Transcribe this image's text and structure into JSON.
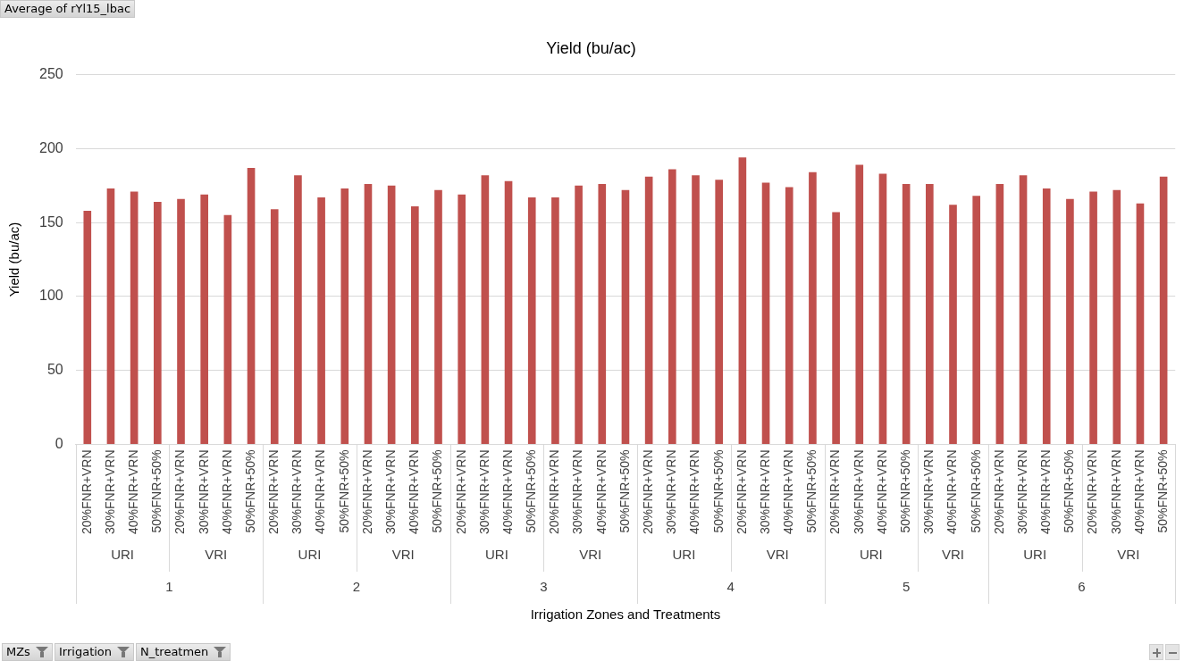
{
  "chart_data": {
    "type": "bar",
    "title": "Yield (bu/ac)",
    "ylabel": "Yield (bu/ac)",
    "categories": [
      "20%FNR+VRN",
      "30%FNR+VRN",
      "40%FNR+VRN",
      "50%FNR+50%",
      "20%FNR+VRN",
      "30%FNR+VRN",
      "40%FNR+VRN",
      "50%FNR+50%",
      "20%FNR+VRN",
      "30%FNR+VRN",
      "40%FNR+VRN",
      "50%FNR+50%",
      "20%FNR+VRN",
      "30%FNR+VRN",
      "40%FNR+VRN",
      "50%FNR+50%",
      "20%FNR+VRN",
      "30%FNR+VRN",
      "40%FNR+VRN",
      "50%FNR+50%",
      "20%FNR+VRN",
      "30%FNR+VRN",
      "40%FNR+VRN",
      "50%FNR+50%",
      "20%FNR+VRN",
      "30%FNR+VRN",
      "40%FNR+VRN",
      "50%FNR+50%",
      "20%FNR+VRN",
      "30%FNR+VRN",
      "40%FNR+VRN",
      "50%FNR+50%",
      "20%FNR+VRN",
      "30%FNR+VRN",
      "40%FNR+VRN",
      "50%FNR+50%",
      "30%FNR+VRN",
      "40%FNR+VRN",
      "50%FNR+50%",
      "20%FNR+VRN",
      "30%FNR+VRN",
      "40%FNR+VRN",
      "50%FNR+50%",
      "20%FNR+VRN",
      "30%FNR+VRN",
      "40%FNR+VRN",
      "50%FNR+50%"
    ],
    "values": [
      158,
      173,
      171,
      164,
      166,
      169,
      155,
      187,
      159,
      182,
      167,
      173,
      176,
      175,
      161,
      172,
      169,
      182,
      178,
      167,
      167,
      175,
      176,
      172,
      181,
      186,
      182,
      179,
      194,
      177,
      174,
      184,
      157,
      189,
      183,
      176,
      176,
      162,
      168,
      176,
      182,
      173,
      166,
      171,
      172,
      163,
      181
    ],
    "color": "#c0504d",
    "ylim": [
      0,
      250
    ],
    "yticks": [
      0,
      50,
      100,
      150,
      200,
      250
    ],
    "grid": "y",
    "legend": false,
    "annotations": [
      "Average of rYl15_lbac",
      "URI",
      "VRI",
      "URI",
      "VRI",
      "URI",
      "VRI",
      "URI",
      "VRI",
      "URI",
      "VRI",
      "URI",
      "VRI",
      "1",
      "2",
      "3",
      "4",
      "5",
      "6",
      "Irrigation Zones and Treatments",
      "MZs",
      "Irrigation",
      "N_treatmen"
    ]
  }
}
